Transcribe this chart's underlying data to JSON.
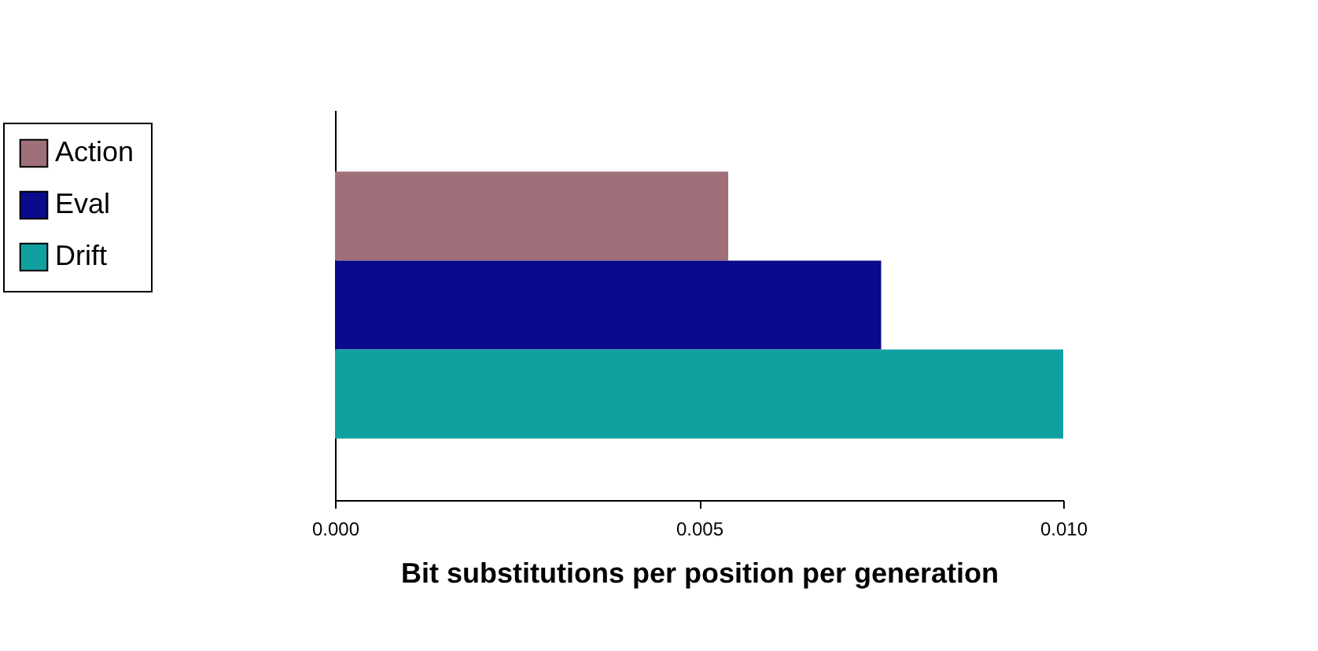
{
  "chart_data": {
    "type": "bar",
    "orientation": "horizontal",
    "xlabel": "Bit substitutions per position per generation",
    "categories": [
      null
    ],
    "series": [
      {
        "name": "Action",
        "color": "#a0707a",
        "values": [
          0.0054
        ]
      },
      {
        "name": "Eval",
        "color": "#0a0a8c",
        "values": [
          0.0075
        ]
      },
      {
        "name": "Drift",
        "color": "#10a0a0",
        "values": [
          0.01
        ]
      }
    ],
    "xlim": [
      0,
      0.01
    ],
    "xticks": [
      {
        "value": 0,
        "label": "0.000"
      },
      {
        "value": 0.005,
        "label": "0.005"
      },
      {
        "value": 0.01,
        "label": "0.010"
      }
    ],
    "legend": "left",
    "grid": false
  }
}
